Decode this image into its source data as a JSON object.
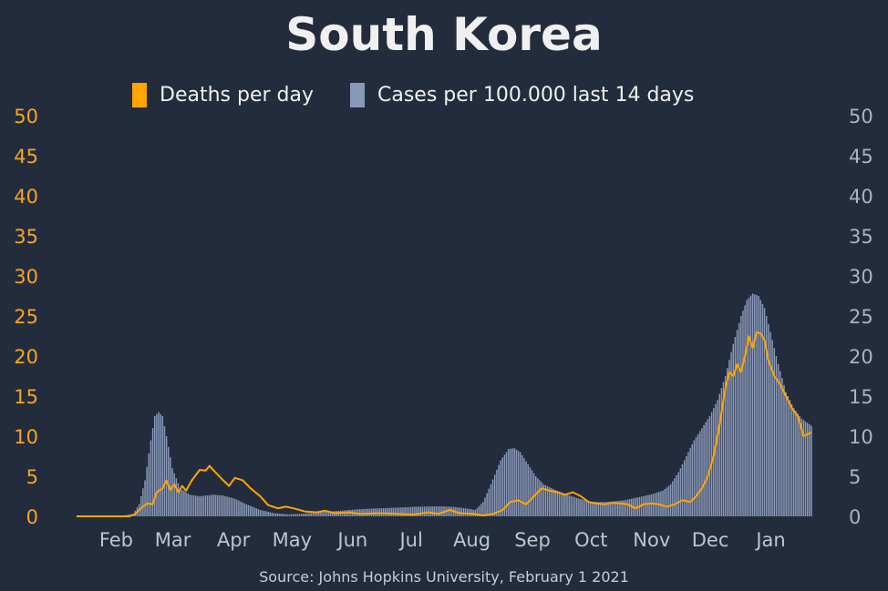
{
  "title": "South Korea",
  "source": "Source: Johns Hopkins University, February 1 2021",
  "colors": {
    "background": "#232c3d",
    "deaths": "#ffa500",
    "cases": "#8a98b8",
    "left_axis": "#f5a623",
    "right_axis": "#aab3c5"
  },
  "chart_data": {
    "type": "bar",
    "title": "South Korea",
    "legend": [
      {
        "label": "Deaths per day",
        "color": "#ffa500",
        "kind": "line"
      },
      {
        "label": "Cases per 100.000 last 14 days",
        "color": "#8a98b8",
        "kind": "bar"
      }
    ],
    "legend_position": "top-center",
    "grid": false,
    "y_left": {
      "ticks": [
        "0",
        "5",
        "10",
        "15",
        "20",
        "25",
        "30",
        "35",
        "40",
        "45",
        "50"
      ],
      "ylim": [
        0,
        50
      ]
    },
    "y_right": {
      "ticks": [
        "0",
        "5",
        "10",
        "15",
        "20",
        "25",
        "30",
        "35",
        "40",
        "45",
        "50"
      ],
      "ylim": [
        0,
        50
      ]
    },
    "x_ticks": [
      {
        "label": "Feb",
        "date": "2020-02-01"
      },
      {
        "label": "Mar",
        "date": "2020-03-01"
      },
      {
        "label": "Apr",
        "date": "2020-04-01"
      },
      {
        "label": "May",
        "date": "2020-05-01"
      },
      {
        "label": "Jun",
        "date": "2020-06-01"
      },
      {
        "label": "Jul",
        "date": "2020-07-01"
      },
      {
        "label": "Aug",
        "date": "2020-08-01"
      },
      {
        "label": "Sep",
        "date": "2020-09-01"
      },
      {
        "label": "Oct",
        "date": "2020-10-01"
      },
      {
        "label": "Nov",
        "date": "2020-11-01"
      },
      {
        "label": "Dec",
        "date": "2020-12-01"
      },
      {
        "label": "Jan",
        "date": "2021-01-01"
      }
    ],
    "date_range": [
      "2020-01-22",
      "2021-02-01"
    ],
    "series": [
      {
        "name": "Cases per 100.000 last 14 days",
        "type": "bar",
        "points": [
          [
            "2020-01-22",
            0
          ],
          [
            "2020-02-15",
            0.1
          ],
          [
            "2020-02-20",
            0.3
          ],
          [
            "2020-02-23",
            1.5
          ],
          [
            "2020-02-26",
            4.5
          ],
          [
            "2020-02-29",
            9.5
          ],
          [
            "2020-03-02",
            12.5
          ],
          [
            "2020-03-04",
            13.0
          ],
          [
            "2020-03-06",
            12.5
          ],
          [
            "2020-03-08",
            10.0
          ],
          [
            "2020-03-11",
            6.0
          ],
          [
            "2020-03-15",
            3.5
          ],
          [
            "2020-03-20",
            2.7
          ],
          [
            "2020-03-25",
            2.5
          ],
          [
            "2020-04-01",
            2.7
          ],
          [
            "2020-04-06",
            2.6
          ],
          [
            "2020-04-12",
            2.2
          ],
          [
            "2020-04-18",
            1.5
          ],
          [
            "2020-04-25",
            0.8
          ],
          [
            "2020-05-02",
            0.4
          ],
          [
            "2020-05-09",
            0.25
          ],
          [
            "2020-05-16",
            0.3
          ],
          [
            "2020-05-25",
            0.5
          ],
          [
            "2020-06-05",
            0.7
          ],
          [
            "2020-06-15",
            0.9
          ],
          [
            "2020-06-25",
            1.0
          ],
          [
            "2020-07-05",
            1.1
          ],
          [
            "2020-07-15",
            1.2
          ],
          [
            "2020-07-25",
            1.25
          ],
          [
            "2020-08-01",
            1.2
          ],
          [
            "2020-08-08",
            1.0
          ],
          [
            "2020-08-13",
            0.8
          ],
          [
            "2020-08-17",
            1.8
          ],
          [
            "2020-08-21",
            4.0
          ],
          [
            "2020-08-26",
            7.0
          ],
          [
            "2020-08-30",
            8.4
          ],
          [
            "2020-09-02",
            8.5
          ],
          [
            "2020-09-05",
            8.0
          ],
          [
            "2020-09-09",
            6.5
          ],
          [
            "2020-09-13",
            5.0
          ],
          [
            "2020-09-17",
            4.0
          ],
          [
            "2020-09-22",
            3.4
          ],
          [
            "2020-09-28",
            2.8
          ],
          [
            "2020-10-05",
            2.2
          ],
          [
            "2020-10-12",
            1.8
          ],
          [
            "2020-10-20",
            1.8
          ],
          [
            "2020-10-28",
            2.0
          ],
          [
            "2020-11-05",
            2.4
          ],
          [
            "2020-11-12",
            2.8
          ],
          [
            "2020-11-17",
            3.2
          ],
          [
            "2020-11-21",
            4.0
          ],
          [
            "2020-11-25",
            5.5
          ],
          [
            "2020-11-29",
            7.5
          ],
          [
            "2020-12-03",
            9.5
          ],
          [
            "2020-12-07",
            11.0
          ],
          [
            "2020-12-11",
            12.5
          ],
          [
            "2020-12-15",
            14.5
          ],
          [
            "2020-12-19",
            17.5
          ],
          [
            "2020-12-23",
            21.5
          ],
          [
            "2020-12-27",
            25.0
          ],
          [
            "2020-12-30",
            27.0
          ],
          [
            "2021-01-02",
            27.8
          ],
          [
            "2021-01-05",
            27.5
          ],
          [
            "2021-01-08",
            26.0
          ],
          [
            "2021-01-11",
            23.0
          ],
          [
            "2021-01-15",
            19.0
          ],
          [
            "2021-01-19",
            15.5
          ],
          [
            "2021-01-23",
            13.5
          ],
          [
            "2021-01-27",
            12.2
          ],
          [
            "2021-02-01",
            11.3
          ]
        ]
      },
      {
        "name": "Deaths per day",
        "type": "line",
        "points": [
          [
            "2020-01-22",
            0
          ],
          [
            "2020-02-18",
            0
          ],
          [
            "2020-02-21",
            0.3
          ],
          [
            "2020-02-24",
            1.0
          ],
          [
            "2020-02-27",
            1.6
          ],
          [
            "2020-03-01",
            1.5
          ],
          [
            "2020-03-03",
            3.0
          ],
          [
            "2020-03-06",
            3.5
          ],
          [
            "2020-03-08",
            4.5
          ],
          [
            "2020-03-10",
            3.3
          ],
          [
            "2020-03-12",
            4.0
          ],
          [
            "2020-03-14",
            3.0
          ],
          [
            "2020-03-16",
            3.8
          ],
          [
            "2020-03-18",
            3.2
          ],
          [
            "2020-03-21",
            4.5
          ],
          [
            "2020-03-25",
            5.8
          ],
          [
            "2020-03-28",
            5.7
          ],
          [
            "2020-03-30",
            6.3
          ],
          [
            "2020-04-02",
            5.5
          ],
          [
            "2020-04-06",
            4.5
          ],
          [
            "2020-04-09",
            3.8
          ],
          [
            "2020-04-12",
            4.8
          ],
          [
            "2020-04-16",
            4.5
          ],
          [
            "2020-04-20",
            3.5
          ],
          [
            "2020-04-25",
            2.5
          ],
          [
            "2020-04-29",
            1.4
          ],
          [
            "2020-05-04",
            1.0
          ],
          [
            "2020-05-08",
            1.2
          ],
          [
            "2020-05-12",
            1.0
          ],
          [
            "2020-05-18",
            0.6
          ],
          [
            "2020-05-24",
            0.5
          ],
          [
            "2020-05-28",
            0.7
          ],
          [
            "2020-06-02",
            0.4
          ],
          [
            "2020-06-10",
            0.5
          ],
          [
            "2020-06-15",
            0.3
          ],
          [
            "2020-06-25",
            0.4
          ],
          [
            "2020-07-05",
            0.3
          ],
          [
            "2020-07-12",
            0.2
          ],
          [
            "2020-07-20",
            0.5
          ],
          [
            "2020-07-25",
            0.3
          ],
          [
            "2020-07-31",
            0.8
          ],
          [
            "2020-08-05",
            0.4
          ],
          [
            "2020-08-12",
            0.3
          ],
          [
            "2020-08-17",
            0.1
          ],
          [
            "2020-08-22",
            0.3
          ],
          [
            "2020-08-27",
            0.8
          ],
          [
            "2020-08-31",
            1.8
          ],
          [
            "2020-09-04",
            2.0
          ],
          [
            "2020-09-08",
            1.5
          ],
          [
            "2020-09-12",
            2.5
          ],
          [
            "2020-09-16",
            3.5
          ],
          [
            "2020-09-20",
            3.2
          ],
          [
            "2020-09-24",
            3.0
          ],
          [
            "2020-09-28",
            2.7
          ],
          [
            "2020-10-02",
            3.0
          ],
          [
            "2020-10-06",
            2.5
          ],
          [
            "2020-10-10",
            1.8
          ],
          [
            "2020-10-14",
            1.6
          ],
          [
            "2020-10-18",
            1.5
          ],
          [
            "2020-10-22",
            1.7
          ],
          [
            "2020-10-26",
            1.6
          ],
          [
            "2020-10-30",
            1.5
          ],
          [
            "2020-11-03",
            1.0
          ],
          [
            "2020-11-07",
            1.5
          ],
          [
            "2020-11-11",
            1.6
          ],
          [
            "2020-11-15",
            1.5
          ],
          [
            "2020-11-19",
            1.2
          ],
          [
            "2020-11-23",
            1.5
          ],
          [
            "2020-11-27",
            2.0
          ],
          [
            "2020-12-01",
            1.8
          ],
          [
            "2020-12-04",
            2.5
          ],
          [
            "2020-12-07",
            3.5
          ],
          [
            "2020-12-10",
            5.0
          ],
          [
            "2020-12-13",
            7.5
          ],
          [
            "2020-12-16",
            11.5
          ],
          [
            "2020-12-19",
            16.0
          ],
          [
            "2020-12-21",
            18.0
          ],
          [
            "2020-12-23",
            17.5
          ],
          [
            "2020-12-25",
            19.0
          ],
          [
            "2020-12-27",
            18.0
          ],
          [
            "2020-12-29",
            20.0
          ],
          [
            "2020-12-31",
            22.5
          ],
          [
            "2021-01-02",
            21.0
          ],
          [
            "2021-01-04",
            23.0
          ],
          [
            "2021-01-06",
            22.8
          ],
          [
            "2021-01-08",
            22.0
          ],
          [
            "2021-01-10",
            19.5
          ],
          [
            "2021-01-13",
            17.5
          ],
          [
            "2021-01-16",
            16.5
          ],
          [
            "2021-01-19",
            15.0
          ],
          [
            "2021-01-22",
            13.5
          ],
          [
            "2021-01-25",
            12.5
          ],
          [
            "2021-01-28",
            10.0
          ],
          [
            "2021-02-01",
            10.5
          ]
        ]
      }
    ]
  }
}
